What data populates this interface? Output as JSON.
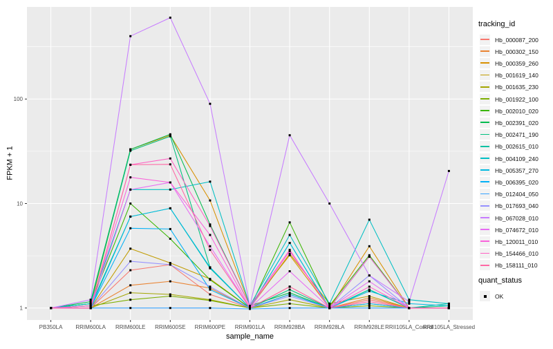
{
  "chart_data": {
    "type": "line",
    "title": "",
    "xlabel": "sample_name",
    "ylabel": "FPKM + 1",
    "y_scale": "log10",
    "ylim": [
      0.93,
      760
    ],
    "y_major_ticks": [
      1,
      10,
      100
    ],
    "y_tick_labels": [
      "1",
      "10",
      "100"
    ],
    "y_minor_breaks": [
      3.1623,
      31.623,
      316.23
    ],
    "categories": [
      "PB350LA",
      "RRIM600LA",
      "RRIM600LE",
      "RRIM600SE",
      "RRIM600PE",
      "RRIM901LA",
      "RRIM928BA",
      "RRIM928LA",
      "RRIM928LE",
      "RRII105LA_Control",
      "RRII105LA_Stressed"
    ],
    "series": [
      {
        "name": "Hb_000087_200",
        "color": "#F8766D",
        "values": [
          1.0,
          1.0,
          2.3,
          2.6,
          1.35,
          1.0,
          1.6,
          1.0,
          1.2,
          1.0,
          1.0
        ]
      },
      {
        "name": "Hb_000302_150",
        "color": "#EA8331",
        "values": [
          1.0,
          1.0,
          1.65,
          1.8,
          1.55,
          1.0,
          1.35,
          1.0,
          1.25,
          1.0,
          1.0
        ]
      },
      {
        "name": "Hb_000359_260",
        "color": "#D89000",
        "values": [
          1.0,
          1.05,
          33.0,
          45.0,
          10.7,
          1.05,
          3.2,
          1.0,
          3.9,
          1.0,
          1.0
        ]
      },
      {
        "name": "Hb_001619_140",
        "color": "#C09B00",
        "values": [
          1.0,
          1.0,
          3.7,
          2.7,
          1.9,
          1.0,
          3.3,
          1.1,
          1.3,
          1.0,
          1.0
        ]
      },
      {
        "name": "Hb_001635_230",
        "color": "#A3A500",
        "values": [
          1.0,
          1.0,
          1.4,
          1.35,
          1.2,
          1.0,
          1.2,
          1.0,
          1.1,
          1.0,
          1.0
        ]
      },
      {
        "name": "Hb_001922_100",
        "color": "#7CAE00",
        "values": [
          1.0,
          1.05,
          1.2,
          1.3,
          1.18,
          1.0,
          1.1,
          1.0,
          1.05,
          1.0,
          1.0
        ]
      },
      {
        "name": "Hb_002010_020",
        "color": "#39B600",
        "values": [
          1.0,
          1.1,
          10.0,
          4.6,
          1.86,
          1.0,
          6.6,
          1.05,
          3.2,
          1.0,
          1.0
        ]
      },
      {
        "name": "Hb_002391_020",
        "color": "#00BB4E",
        "values": [
          1.0,
          1.15,
          33.0,
          46.0,
          6.3,
          1.05,
          1.4,
          1.0,
          3.1,
          1.0,
          1.0
        ]
      },
      {
        "name": "Hb_002471_190",
        "color": "#00BF7D",
        "values": [
          1.0,
          1.1,
          32.0,
          44.0,
          2.45,
          1.0,
          1.5,
          1.0,
          1.5,
          1.0,
          1.05
        ]
      },
      {
        "name": "Hb_002615_010",
        "color": "#00C1A3",
        "values": [
          1.0,
          1.05,
          7.5,
          9.0,
          2.4,
          1.0,
          4.2,
          1.0,
          1.5,
          1.0,
          1.1
        ]
      },
      {
        "name": "Hb_004109_240",
        "color": "#00BFC4",
        "values": [
          1.0,
          1.1,
          13.6,
          13.6,
          16.2,
          1.05,
          5.0,
          1.1,
          7.0,
          1.2,
          1.1
        ]
      },
      {
        "name": "Hb_005357_270",
        "color": "#00BAE0",
        "values": [
          1.0,
          1.0,
          7.5,
          9.0,
          2.45,
          1.0,
          4.2,
          1.0,
          1.45,
          1.1,
          1.05
        ]
      },
      {
        "name": "Hb_006395_020",
        "color": "#00B0F6",
        "values": [
          1.0,
          1.0,
          5.8,
          5.7,
          1.5,
          1.0,
          1.35,
          1.0,
          1.1,
          1.0,
          1.0
        ]
      },
      {
        "name": "Hb_012404_050",
        "color": "#35A2FF",
        "values": [
          1.0,
          1.0,
          1.0,
          1.0,
          1.0,
          0.98,
          1.0,
          1.0,
          1.0,
          1.0,
          1.0
        ]
      },
      {
        "name": "Hb_017693_040",
        "color": "#9590FF",
        "values": [
          1.0,
          1.0,
          2.8,
          2.6,
          1.6,
          1.0,
          1.3,
          1.0,
          2.05,
          1.0,
          1.0
        ]
      },
      {
        "name": "Hb_067028_010",
        "color": "#C77CFF",
        "values": [
          1.0,
          1.2,
          400.0,
          600.0,
          90.0,
          1.05,
          45.0,
          10.0,
          2.05,
          1.15,
          20.5
        ]
      },
      {
        "name": "Hb_074672_010",
        "color": "#E76BF3",
        "values": [
          1.0,
          1.0,
          13.6,
          15.9,
          3.9,
          1.0,
          2.25,
          1.0,
          1.8,
          1.0,
          1.0
        ]
      },
      {
        "name": "Hb_120011_010",
        "color": "#FA62DB",
        "values": [
          1.0,
          1.05,
          17.8,
          15.9,
          5.0,
          1.0,
          3.5,
          1.0,
          3.1,
          1.0,
          1.0
        ]
      },
      {
        "name": "Hb_154466_010",
        "color": "#FF61C3",
        "values": [
          1.0,
          1.0,
          23.5,
          27.0,
          6.1,
          1.05,
          3.6,
          1.0,
          1.6,
          1.0,
          1.0
        ]
      },
      {
        "name": "Hb_158111_010",
        "color": "#FF67A4",
        "values": [
          1.0,
          1.0,
          23.5,
          23.7,
          3.6,
          1.0,
          1.6,
          1.0,
          1.15,
          1.0,
          1.0
        ]
      }
    ],
    "legend_position": "right",
    "grid": true
  },
  "axes": {
    "x_title": "sample_name",
    "y_title": "FPKM + 1"
  },
  "legend": {
    "tracking_title": "tracking_id",
    "quant_title": "quant_status",
    "quant_items": [
      {
        "label": "OK",
        "shape": "square",
        "color": "#000000"
      }
    ]
  },
  "style": {
    "panel_bg": "#EBEBEB",
    "grid_color": "#FFFFFF",
    "tick_text_color": "#4D4D4D",
    "tick_mark_color": "#333333",
    "point_color": "#000000",
    "legend_key_bg": "#F2F2F2"
  }
}
